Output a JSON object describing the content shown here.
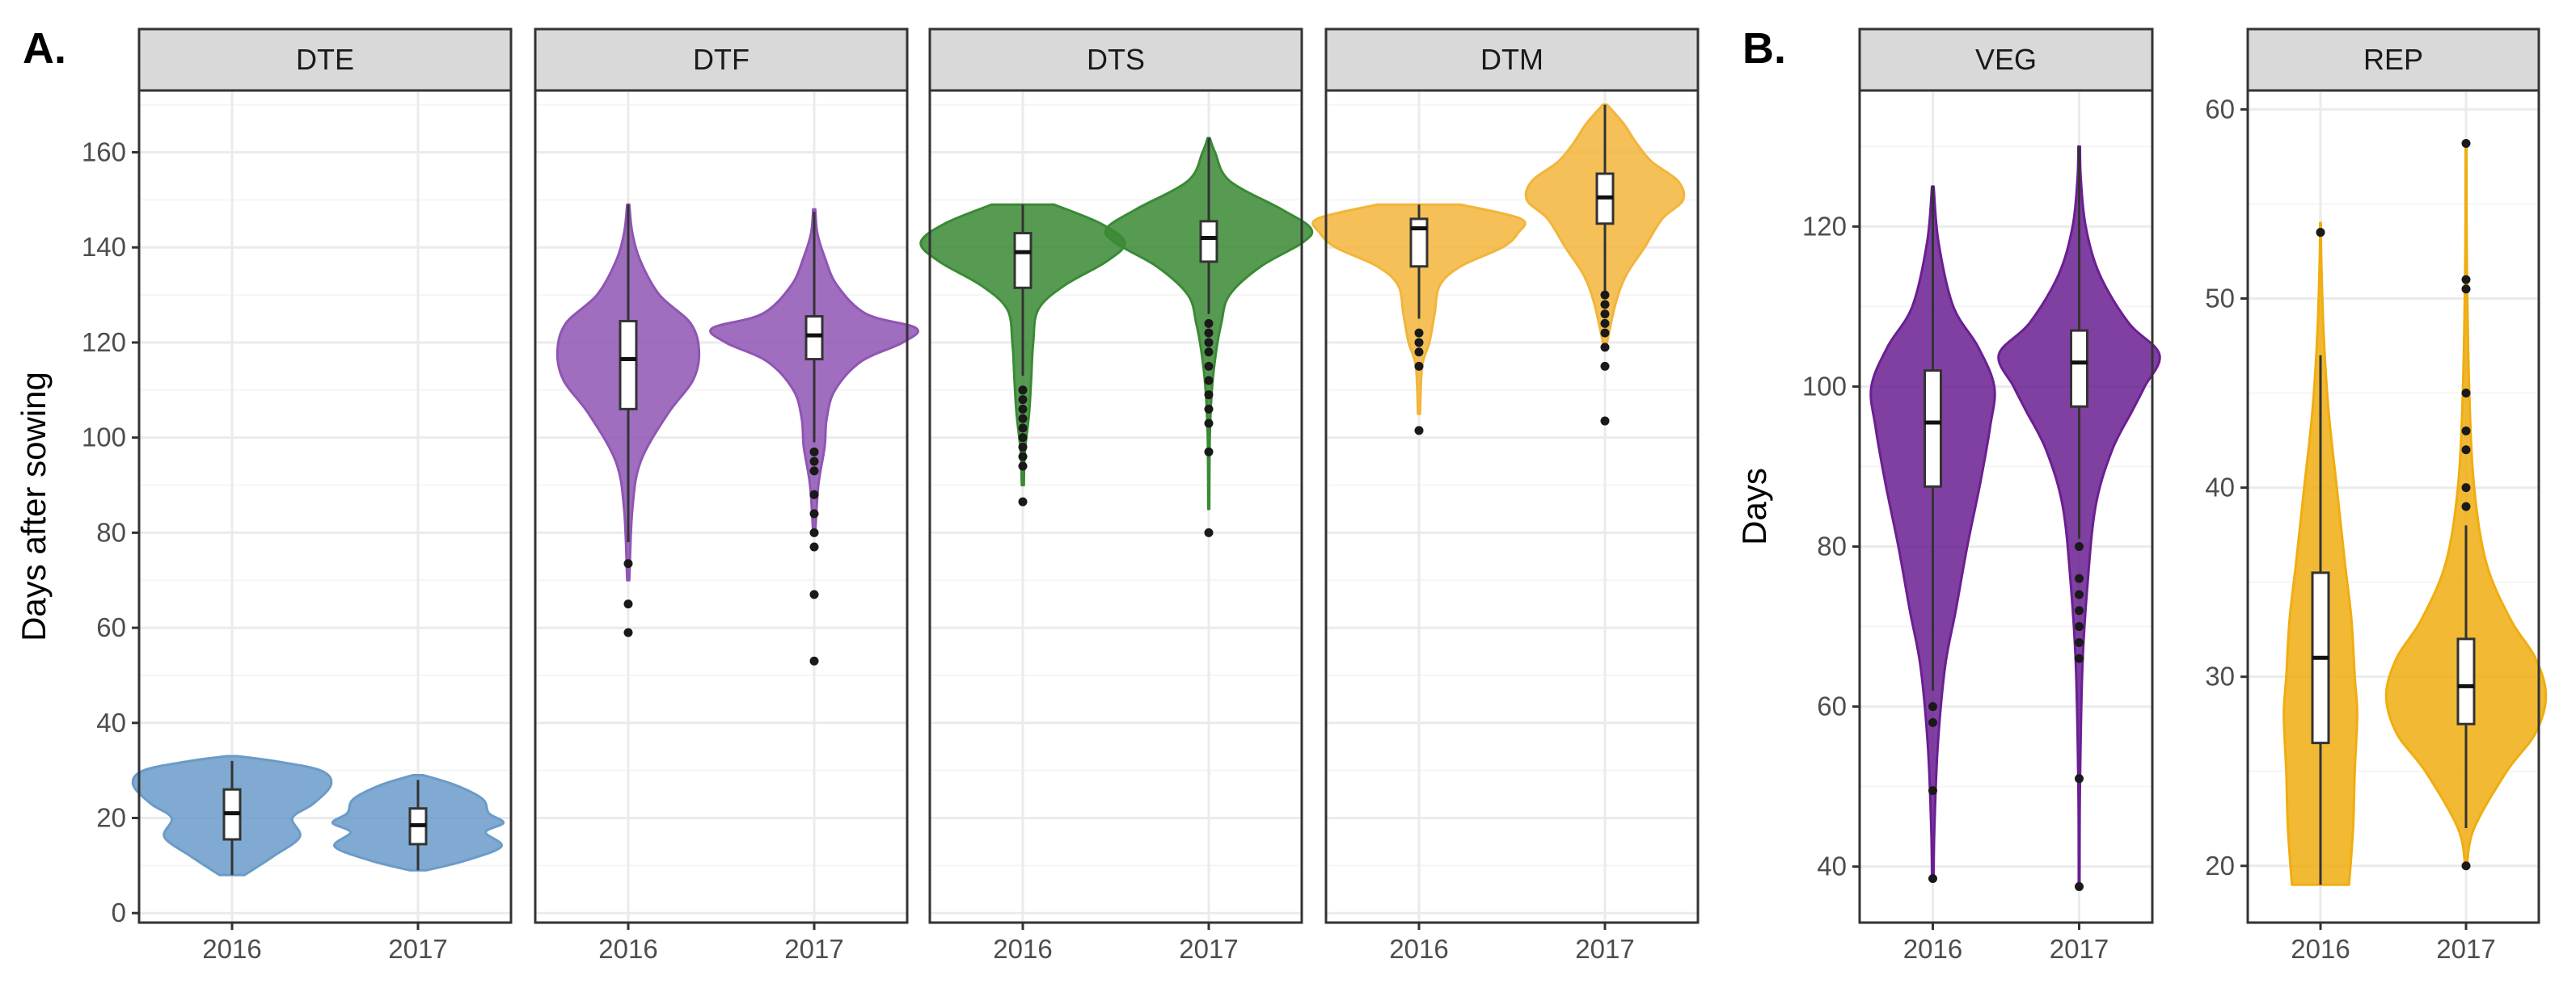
{
  "colors": {
    "DTE": "#6a9bc9",
    "DTF": "#8f55b4",
    "DTS": "#3a8a35",
    "DTM": "#f2b53a",
    "VEG": "#6a1f92",
    "REP": "#f0ad11",
    "strip_fill": "#d9d9d9",
    "grid_major": "#ebebeb",
    "grid_minor": "#f5f5f5",
    "border": "#333333"
  },
  "chart_data": [
    {
      "type": "violin",
      "panel_label": "A.",
      "ylabel": "Days after sowing",
      "ylim": [
        -2,
        173
      ],
      "yticks": [
        0,
        20,
        40,
        60,
        80,
        100,
        120,
        140,
        160
      ],
      "yticks_text": [
        "0",
        "20",
        "40",
        "60",
        "80",
        "100",
        "120",
        "140",
        "160"
      ],
      "categories": [
        "2016",
        "2017"
      ],
      "facets": [
        {
          "name": "DTE",
          "colorKey": "DTE",
          "groups": [
            {
              "year": "2016",
              "violin": [
                [
                  8,
                  0.12
                ],
                [
                  12,
                  0.4
                ],
                [
                  16,
                  0.65
                ],
                [
                  20,
                  0.58
                ],
                [
                  23,
                  0.78
                ],
                [
                  27,
                  0.95
                ],
                [
                  30,
                  0.85
                ],
                [
                  32,
                  0.4
                ],
                [
                  33,
                  0.05
                ]
              ],
              "box": {
                "q1": 15.5,
                "median": 21,
                "q3": 26,
                "wlo": 8,
                "whi": 32
              },
              "outliers": []
            },
            {
              "year": "2017",
              "violin": [
                [
                  9,
                  0.08
                ],
                [
                  11,
                  0.45
                ],
                [
                  14,
                  0.8
                ],
                [
                  17,
                  0.65
                ],
                [
                  19,
                  0.82
                ],
                [
                  21,
                  0.68
                ],
                [
                  24,
                  0.62
                ],
                [
                  27,
                  0.35
                ],
                [
                  29,
                  0.05
                ]
              ],
              "box": {
                "q1": 14.5,
                "median": 18.5,
                "q3": 22,
                "wlo": 9,
                "whi": 28
              },
              "outliers": []
            }
          ]
        },
        {
          "name": "DTF",
          "colorKey": "DTF",
          "groups": [
            {
              "year": "2016",
              "violin": [
                [
                  70,
                  0.01
                ],
                [
                  85,
                  0.04
                ],
                [
                  95,
                  0.12
                ],
                [
                  105,
                  0.38
                ],
                [
                  112,
                  0.62
                ],
                [
                  118,
                  0.68
                ],
                [
                  124,
                  0.6
                ],
                [
                  130,
                  0.3
                ],
                [
                  137,
                  0.12
                ],
                [
                  143,
                  0.04
                ],
                [
                  149,
                  0.01
                ]
              ],
              "box": {
                "q1": 106,
                "median": 116.5,
                "q3": 124.5,
                "wlo": 78,
                "whi": 149
              },
              "outliers": [
                59,
                65,
                73.5
              ]
            },
            {
              "year": "2017",
              "violin": [
                [
                  80,
                  0.01
                ],
                [
                  90,
                  0.04
                ],
                [
                  98,
                  0.1
                ],
                [
                  104,
                  0.12
                ],
                [
                  110,
                  0.2
                ],
                [
                  116,
                  0.45
                ],
                [
                  120,
                  0.85
                ],
                [
                  123,
                  0.98
                ],
                [
                  126,
                  0.5
                ],
                [
                  132,
                  0.22
                ],
                [
                  138,
                  0.1
                ],
                [
                  143,
                  0.03
                ],
                [
                  148,
                  0.01
                ]
              ],
              "box": {
                "q1": 116.5,
                "median": 121.5,
                "q3": 125.5,
                "wlo": 99,
                "whi": 147.5
              },
              "outliers": [
                53,
                67,
                77,
                80,
                84,
                88,
                93,
                95,
                97
              ]
            }
          ]
        },
        {
          "name": "DTS",
          "colorKey": "DTS",
          "groups": [
            {
              "year": "2016",
              "violin": [
                [
                  90,
                  0.01
                ],
                [
                  97,
                  0.02
                ],
                [
                  105,
                  0.06
                ],
                [
                  112,
                  0.08
                ],
                [
                  120,
                  0.1
                ],
                [
                  127,
                  0.15
                ],
                [
                  132,
                  0.4
                ],
                [
                  137,
                  0.8
                ],
                [
                  141,
                  0.98
                ],
                [
                  145,
                  0.75
                ],
                [
                  149,
                  0.3
                ]
              ],
              "box": {
                "q1": 131.5,
                "median": 139,
                "q3": 143,
                "wlo": 113,
                "whi": 149
              },
              "outliers": [
                86.5,
                94,
                96,
                98,
                100,
                102,
                104,
                106,
                108,
                110
              ]
            },
            {
              "year": "2017",
              "violin": [
                [
                  85,
                  0.005
                ],
                [
                  100,
                  0.01
                ],
                [
                  110,
                  0.03
                ],
                [
                  118,
                  0.07
                ],
                [
                  124,
                  0.12
                ],
                [
                  130,
                  0.2
                ],
                [
                  136,
                  0.5
                ],
                [
                  141,
                  0.9
                ],
                [
                  144,
                  0.98
                ],
                [
                  148,
                  0.7
                ],
                [
                  154,
                  0.2
                ],
                [
                  160,
                  0.06
                ],
                [
                  163,
                  0.01
                ]
              ],
              "box": {
                "q1": 137,
                "median": 142,
                "q3": 145.5,
                "wlo": 126,
                "whi": 163
              },
              "outliers": [
                80,
                97,
                103,
                106,
                109,
                112,
                115,
                118,
                120,
                122,
                124
              ]
            }
          ]
        },
        {
          "name": "DTM",
          "colorKey": "DTM",
          "groups": [
            {
              "year": "2016",
              "violin": [
                [
                  105,
                  0.01
                ],
                [
                  115,
                  0.03
                ],
                [
                  120,
                  0.1
                ],
                [
                  126,
                  0.15
                ],
                [
                  132,
                  0.2
                ],
                [
                  136,
                  0.4
                ],
                [
                  140,
                  0.8
                ],
                [
                  143,
                  0.95
                ],
                [
                  146,
                  0.98
                ],
                [
                  149,
                  0.4
                ]
              ],
              "box": {
                "q1": 136,
                "median": 144,
                "q3": 146,
                "wlo": 125,
                "whi": 149
              },
              "outliers": [
                101.5,
                115,
                118,
                120,
                122
              ]
            },
            {
              "year": "2017",
              "violin": [
                [
                  120,
                  0.02
                ],
                [
                  128,
                  0.1
                ],
                [
                  134,
                  0.2
                ],
                [
                  140,
                  0.38
                ],
                [
                  146,
                  0.55
                ],
                [
                  150,
                  0.75
                ],
                [
                  154,
                  0.7
                ],
                [
                  158,
                  0.45
                ],
                [
                  162,
                  0.3
                ],
                [
                  166,
                  0.18
                ],
                [
                  170,
                  0.02
                ]
              ],
              "box": {
                "q1": 145,
                "median": 150.5,
                "q3": 155.5,
                "wlo": 130,
                "whi": 170
              },
              "outliers": [
                103.5,
                115,
                119,
                122,
                124,
                126,
                128,
                130
              ]
            }
          ]
        }
      ]
    },
    {
      "type": "violin",
      "panel_label": "B.",
      "ylabel": "Days",
      "categories": [
        "2016",
        "2017"
      ],
      "facets": [
        {
          "name": "VEG",
          "colorKey": "VEG",
          "ylim": [
            33,
            137
          ],
          "yticks": [
            40,
            60,
            80,
            100,
            120
          ],
          "yticks_text": [
            "40",
            "60",
            "80",
            "100",
            "120"
          ],
          "groups": [
            {
              "year": "2016",
              "violin": [
                [
                  39,
                  0.01
                ],
                [
                  45,
                  0.02
                ],
                [
                  55,
                  0.06
                ],
                [
                  65,
                  0.15
                ],
                [
                  72,
                  0.28
                ],
                [
                  80,
                  0.42
                ],
                [
                  88,
                  0.58
                ],
                [
                  95,
                  0.7
                ],
                [
                  100,
                  0.75
                ],
                [
                  105,
                  0.55
                ],
                [
                  110,
                  0.25
                ],
                [
                  118,
                  0.07
                ],
                [
                  125,
                  0.01
                ]
              ],
              "box": {
                "q1": 87.5,
                "median": 95.5,
                "q3": 102,
                "wlo": 62,
                "whi": 125
              },
              "outliers": [
                38.5,
                49.5,
                58,
                60
              ]
            },
            {
              "year": "2017",
              "violin": [
                [
                  38,
                  0.005
                ],
                [
                  50,
                  0.01
                ],
                [
                  65,
                  0.04
                ],
                [
                  75,
                  0.1
                ],
                [
                  85,
                  0.2
                ],
                [
                  92,
                  0.4
                ],
                [
                  97,
                  0.65
                ],
                [
                  100,
                  0.8
                ],
                [
                  104,
                  0.98
                ],
                [
                  108,
                  0.6
                ],
                [
                  114,
                  0.25
                ],
                [
                  120,
                  0.08
                ],
                [
                  126,
                  0.02
                ],
                [
                  130,
                  0.01
                ]
              ],
              "box": {
                "q1": 97.5,
                "median": 103,
                "q3": 107,
                "wlo": 81,
                "whi": 130
              },
              "outliers": [
                37.5,
                51,
                66,
                68,
                70,
                72,
                74,
                76,
                80
              ]
            }
          ]
        },
        {
          "name": "REP",
          "colorKey": "REP",
          "ylim": [
            17,
            61
          ],
          "yticks": [
            20,
            30,
            40,
            50,
            60
          ],
          "yticks_text": [
            "20",
            "30",
            "40",
            "50",
            "60"
          ],
          "groups": [
            {
              "year": "2016",
              "violin": [
                [
                  19,
                  0.35
                ],
                [
                  22,
                  0.4
                ],
                [
                  25,
                  0.42
                ],
                [
                  28,
                  0.45
                ],
                [
                  30,
                  0.42
                ],
                [
                  33,
                  0.38
                ],
                [
                  36,
                  0.3
                ],
                [
                  40,
                  0.2
                ],
                [
                  44,
                  0.1
                ],
                [
                  48,
                  0.04
                ],
                [
                  52,
                  0.01
                ],
                [
                  54,
                  0.005
                ]
              ],
              "box": {
                "q1": 26.5,
                "median": 31,
                "q3": 35.5,
                "wlo": 19,
                "whi": 47
              },
              "outliers": [
                53.5
              ]
            },
            {
              "year": "2017",
              "violin": [
                [
                  20,
                  0.01
                ],
                [
                  22,
                  0.1
                ],
                [
                  25,
                  0.5
                ],
                [
                  27,
                  0.85
                ],
                [
                  29,
                  0.98
                ],
                [
                  31,
                  0.85
                ],
                [
                  33,
                  0.55
                ],
                [
                  36,
                  0.25
                ],
                [
                  40,
                  0.1
                ],
                [
                  45,
                  0.04
                ],
                [
                  52,
                  0.01
                ],
                [
                  58,
                  0.005
                ]
              ],
              "box": {
                "q1": 27.5,
                "median": 29.5,
                "q3": 32,
                "wlo": 22,
                "whi": 38
              },
              "outliers": [
                20,
                39,
                40,
                42,
                43,
                45,
                50.5,
                51,
                58.2
              ]
            }
          ]
        }
      ]
    }
  ]
}
